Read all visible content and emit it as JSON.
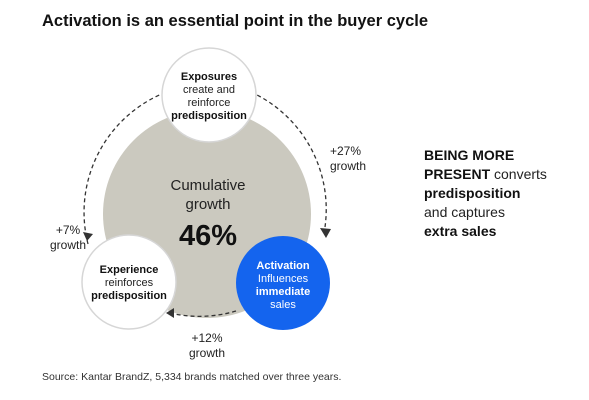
{
  "title": "Activation is an essential point in the buyer cycle",
  "center": {
    "line1": "Cumulative",
    "line2": "growth",
    "value": "46%"
  },
  "nodes": {
    "exposures": {
      "heading": "Exposures",
      "line1": "create and",
      "line2": "reinforce",
      "line3": "predisposition"
    },
    "experience": {
      "heading": "Experience",
      "line1": "reinforces",
      "line2": "predisposition"
    },
    "activation": {
      "heading": "Activation",
      "line1": "Influences",
      "line2": "immediate",
      "line3": "sales"
    }
  },
  "growth_labels": {
    "right": {
      "value": "+27%",
      "label": "growth"
    },
    "left": {
      "value": "+7%",
      "label": "growth"
    },
    "bottom": {
      "value": "+12%",
      "label": "growth"
    }
  },
  "side_text": {
    "bold1": "BEING MORE",
    "bold2": "PRESENT",
    "normal1": " converts",
    "bold3": "predisposition",
    "normal2": "and captures",
    "bold4": "extra sales"
  },
  "source": "Source: Kantar BrandZ, 5,334 brands matched over three years.",
  "colors": {
    "big_circle": "#cbc9bf",
    "activation": "#1464ee",
    "node_border": "#d6d6d6",
    "dashed": "#333333"
  }
}
